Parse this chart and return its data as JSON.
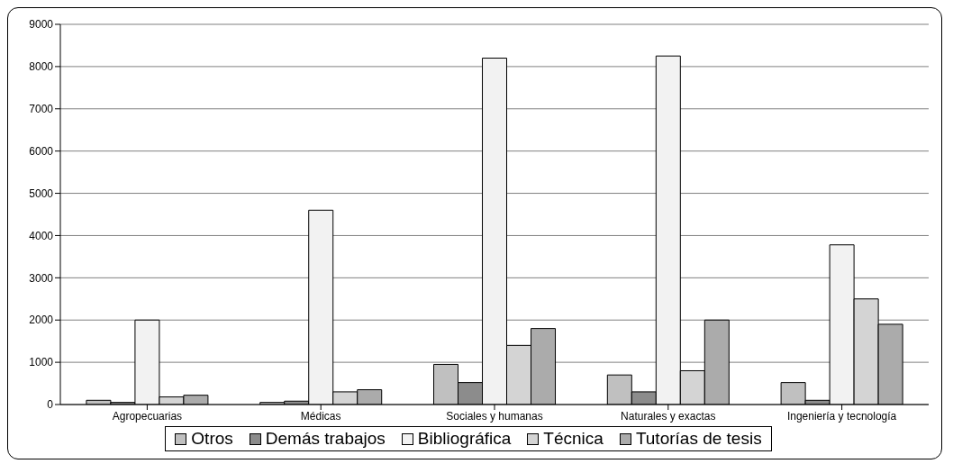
{
  "chart_data": {
    "type": "bar",
    "categories": [
      "Agropecuarias",
      "Médicas",
      "Sociales y humanas",
      "Naturales y exactas",
      "Ingeniería y tecnología"
    ],
    "series": [
      {
        "name": "Otros",
        "color": "#c0c0c0",
        "values": [
          100,
          50,
          950,
          700,
          520
        ]
      },
      {
        "name": "Demás trabajos",
        "color": "#8c8c8c",
        "values": [
          50,
          80,
          520,
          300,
          100
        ]
      },
      {
        "name": "Bibliográfica",
        "color": "#f2f2f2",
        "values": [
          2000,
          4600,
          8200,
          8250,
          3780
        ]
      },
      {
        "name": "Técnica",
        "color": "#d4d4d4",
        "values": [
          180,
          300,
          1400,
          800,
          2500
        ]
      },
      {
        "name": "Tutorías de tesis",
        "color": "#ababab",
        "values": [
          220,
          350,
          1800,
          2000,
          1900
        ]
      }
    ],
    "ylim": [
      0,
      9000
    ],
    "yticks": [
      0,
      1000,
      2000,
      3000,
      4000,
      5000,
      6000,
      7000,
      8000,
      9000
    ],
    "grid": "y",
    "legend": "bottom"
  }
}
